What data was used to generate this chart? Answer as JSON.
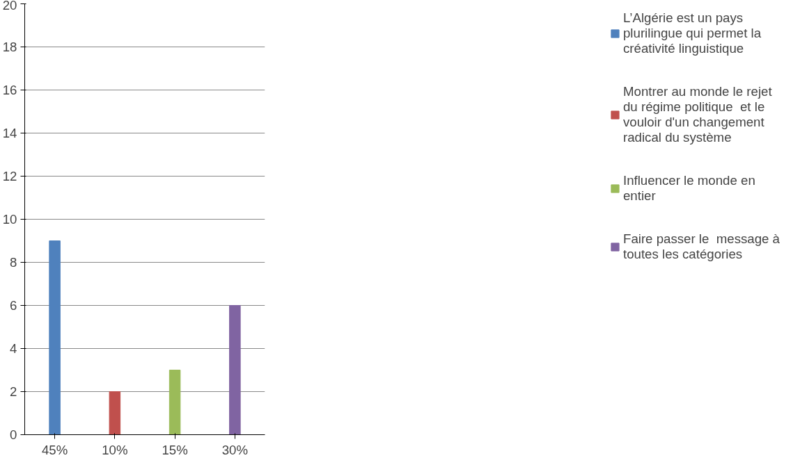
{
  "chart_data": {
    "type": "bar",
    "categories": [
      "45%",
      "10%",
      "15%",
      "30%"
    ],
    "series": [
      {
        "name": "L’Algérie est un pays plurilingue qui permet la créativité linguistique",
        "color": "#4f81bd",
        "values": [
          9,
          null,
          null,
          null
        ]
      },
      {
        "name": "Montrer au monde le rejet du régime politique  et le vouloir d'un changement radical du système",
        "color": "#c0504d",
        "values": [
          null,
          2,
          null,
          null
        ]
      },
      {
        "name": "Influencer le monde en entier",
        "color": "#9bbb59",
        "values": [
          null,
          null,
          3,
          null
        ]
      },
      {
        "name": "Faire passer le  message à toutes les catégories",
        "color": "#8064a2",
        "values": [
          null,
          null,
          null,
          6
        ]
      }
    ],
    "ylim": [
      0,
      20
    ],
    "yticks": [
      0,
      2,
      4,
      6,
      8,
      10,
      12,
      14,
      16,
      18,
      20
    ],
    "grid": "y",
    "legend": "right"
  }
}
